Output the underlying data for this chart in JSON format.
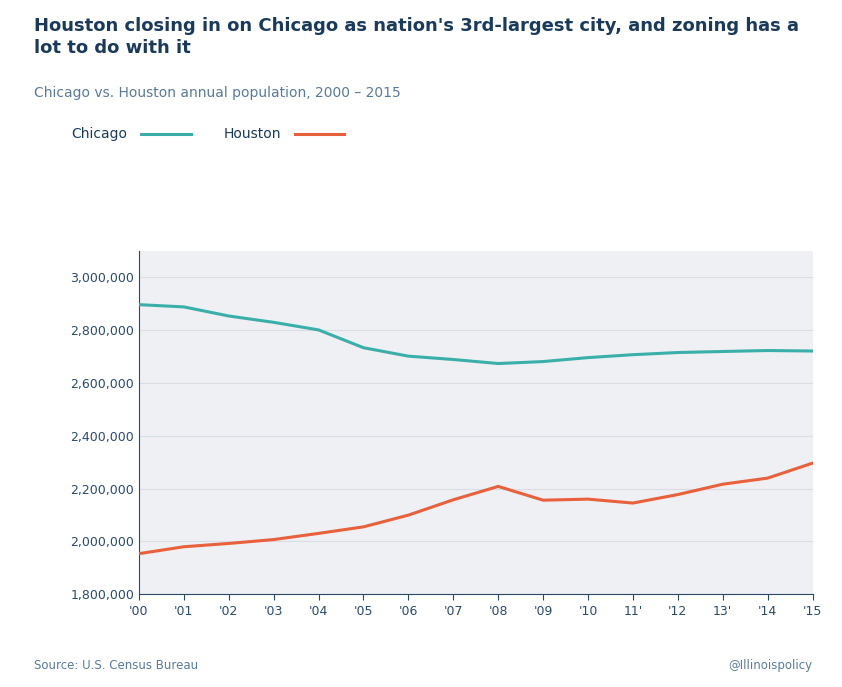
{
  "title": "Houston closing in on Chicago as nation's 3rd-largest city, and zoning has a\nlot to do with it",
  "subtitle": "Chicago vs. Houston annual population, 2000 – 2015",
  "years": [
    2000,
    2001,
    2002,
    2003,
    2004,
    2005,
    2006,
    2007,
    2008,
    2009,
    2010,
    2011,
    2012,
    2013,
    2014,
    2015
  ],
  "chicago": [
    2896016,
    2887520,
    2853114,
    2829053,
    2800427,
    2733040,
    2701118,
    2688461,
    2673174,
    2680640,
    2695598,
    2706633,
    2714856,
    2718782,
    2722389,
    2720546
  ],
  "houston": [
    1953631,
    1979787,
    1992241,
    2007005,
    2030339,
    2055096,
    2099451,
    2157527,
    2208180,
    2156000,
    2160000,
    2145146,
    2177376,
    2216460,
    2239558,
    2296224
  ],
  "chicago_color": "#3aafa9",
  "houston_color": "#e8603c",
  "title_color": "#1a3a5c",
  "subtitle_color": "#5a7a9a",
  "axis_color": "#2a4a6c",
  "tick_color": "#2a4a6c",
  "grid_color": "#d8dde6",
  "bg_color": "#eef0f3",
  "ylim": [
    1800000,
    3100000
  ],
  "yticks": [
    1800000,
    2000000,
    2200000,
    2400000,
    2600000,
    2800000,
    3000000
  ],
  "x_labels": [
    "'00",
    "'01",
    "'02",
    "'03",
    "'04",
    "'05",
    "'06",
    "'07",
    "'08",
    "'09",
    "'10",
    "11'",
    "'12",
    "13'",
    "'14",
    "'15"
  ],
  "source_text": "Source: U.S. Census Bureau",
  "credit_text": "@Illinoispolicy",
  "line_width": 2.2,
  "title_fontsize": 13,
  "subtitle_fontsize": 10,
  "tick_fontsize": 9
}
